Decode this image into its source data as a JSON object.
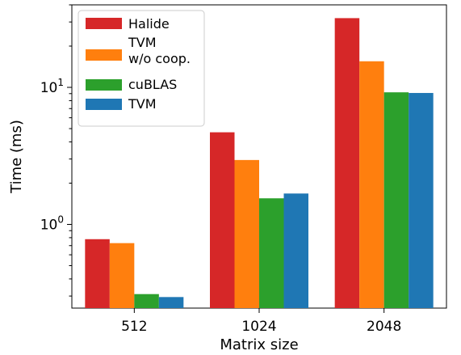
{
  "chart_data": {
    "type": "bar",
    "categories": [
      "512",
      "1024",
      "2048"
    ],
    "series": [
      {
        "name": "Halide",
        "color": "#d62728",
        "values": [
          0.78,
          4.7,
          32.0
        ]
      },
      {
        "name": "TVM\nw/o coop.",
        "color": "#ff7f0e",
        "values": [
          0.73,
          2.95,
          15.5
        ]
      },
      {
        "name": "cuBLAS",
        "color": "#2ca02c",
        "values": [
          0.31,
          1.55,
          9.2
        ]
      },
      {
        "name": "TVM",
        "color": "#1f77b4",
        "values": [
          0.295,
          1.68,
          9.1
        ]
      }
    ],
    "xlabel": "Matrix size",
    "ylabel": "Time (ms)",
    "yscale": "log",
    "ylim": [
      0.245,
      40
    ],
    "ytick_labels": [
      {
        "value": 1,
        "base": "10",
        "exp": "0"
      },
      {
        "value": 10,
        "base": "10",
        "exp": "1"
      }
    ],
    "grid": false,
    "legend_position": "upper-left"
  }
}
